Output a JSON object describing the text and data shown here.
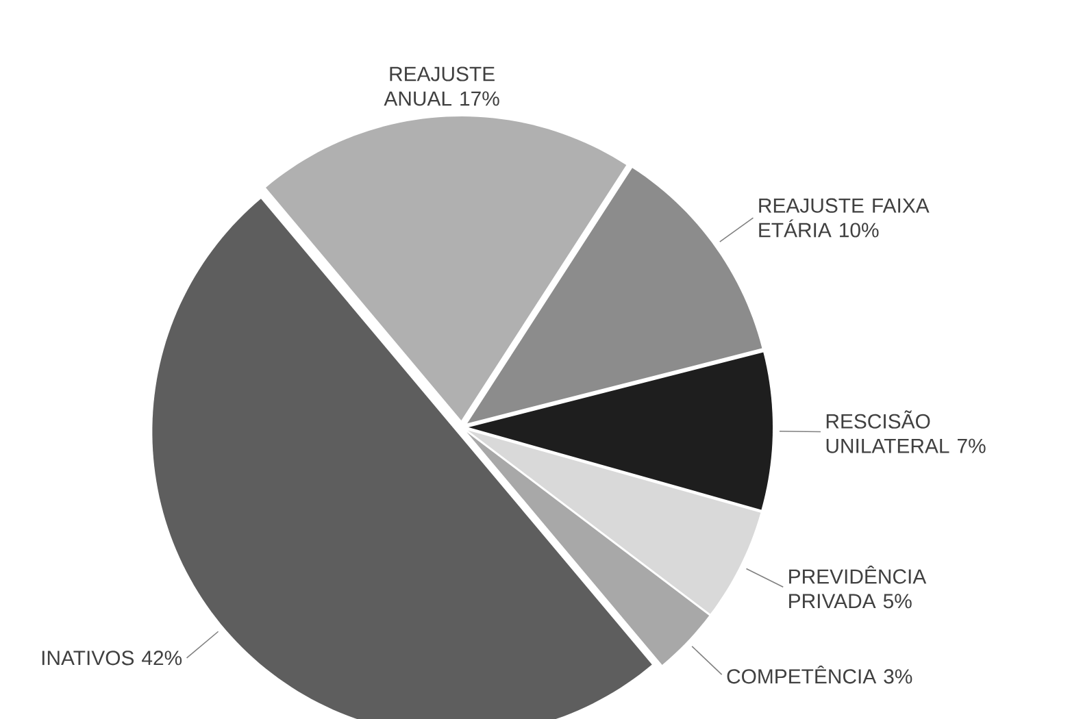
{
  "chart_data": {
    "type": "pie",
    "categories": [
      "REAJUSTE ANUAL",
      "REAJUSTE FAIXA ETÁRIA",
      "RESCISÃO UNILATERAL",
      "PREVIDÊNCIA PRIVADA",
      "COMPETÊNCIA",
      "INATIVOS"
    ],
    "values": [
      17,
      10,
      7,
      5,
      3,
      42
    ],
    "value_labels": [
      "17%",
      "10%",
      "7%",
      "5%",
      "3%",
      "42%"
    ],
    "colors": [
      "#b0b0b0",
      "#8c8c8c",
      "#1e1e1e",
      "#d9d9d9",
      "#a8a8a8",
      "#5e5e5e"
    ]
  }
}
